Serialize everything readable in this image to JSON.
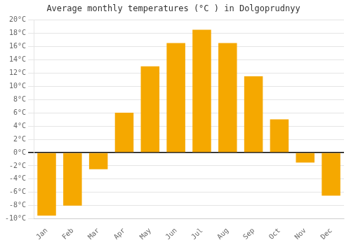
{
  "chart_data": {
    "type": "bar",
    "title": "Average monthly temperatures (°C ) in Dolgoprudnyy",
    "categories": [
      "Jan",
      "Feb",
      "Mar",
      "Apr",
      "May",
      "Jun",
      "Jul",
      "Aug",
      "Sep",
      "Oct",
      "Nov",
      "Dec"
    ],
    "values": [
      -9.5,
      -8.0,
      -2.5,
      6.0,
      13.0,
      16.5,
      18.5,
      16.5,
      11.5,
      5.0,
      -1.5,
      -6.5
    ],
    "color": "#F5A800",
    "ylim": [
      -10,
      20
    ],
    "yticks": [
      {
        "value": -10,
        "label": "-10°C"
      },
      {
        "value": -8,
        "label": "-8°C"
      },
      {
        "value": -6,
        "label": "-6°C"
      },
      {
        "value": -4,
        "label": "-4°C"
      },
      {
        "value": -2,
        "label": "-2°C"
      },
      {
        "value": 0,
        "label": "0°C"
      },
      {
        "value": 2,
        "label": "2°C"
      },
      {
        "value": 4,
        "label": "4°C"
      },
      {
        "value": 6,
        "label": "6°C"
      },
      {
        "value": 8,
        "label": "8°C"
      },
      {
        "value": 10,
        "label": "10°C"
      },
      {
        "value": 12,
        "label": "12°C"
      },
      {
        "value": 14,
        "label": "14°C"
      },
      {
        "value": 16,
        "label": "16°C"
      },
      {
        "value": 18,
        "label": "18°C"
      },
      {
        "value": 20,
        "label": "20°C"
      }
    ],
    "grid": true
  }
}
